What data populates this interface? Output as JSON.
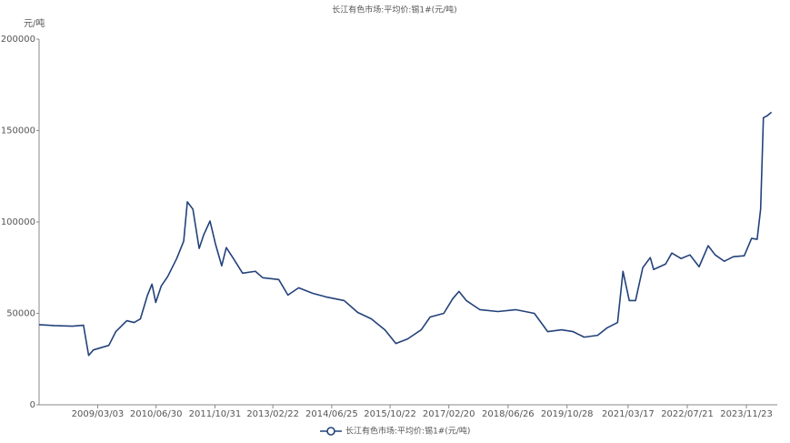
{
  "chart_data": {
    "type": "line",
    "title": "长江有色市场:平均价:锡1#(元/吨)",
    "y_label": "元/吨",
    "x": [
      "2007/11/03",
      "2008/03/10",
      "2008/08/05",
      "2008/11/05",
      "2008/11/27",
      "2008/12/18",
      "2009/01/26",
      "2009/03/18",
      "2009/06/03",
      "2009/07/31",
      "2009/09/22",
      "2009/10/30",
      "2009/12/30",
      "2010/02/20",
      "2010/04/20",
      "2010/05/27",
      "2010/06/27",
      "2010/08/12",
      "2010/10/03",
      "2010/12/18",
      "2011/02/14",
      "2011/03/16",
      "2011/05/01",
      "2011/06/22",
      "2011/07/30",
      "2011/09/20",
      "2011/11/04",
      "2011/12/26",
      "2012/02/02",
      "2012/04/01",
      "2012/06/16",
      "2012/09/30",
      "2012/11/30",
      "2013/04/12",
      "2013/06/27",
      "2013/09/24",
      "2014/01/17",
      "2014/05/09",
      "2014/10/06",
      "2015/01/27",
      "2015/05/19",
      "2015/09/09",
      "2015/12/09",
      "2016/03/15",
      "2016/07/06",
      "2016/09/18",
      "2017/01/09",
      "2017/03/24",
      "2017/05/15",
      "2017/07/15",
      "2017/11/05",
      "2018/04/03",
      "2018/08/31",
      "2019/01/30",
      "2019/05/21",
      "2019/09/12",
      "2019/12/18",
      "2020/03/18",
      "2020/07/08",
      "2020/09/22",
      "2020/12/20",
      "2021/02/03",
      "2021/03/27",
      "2021/05/18",
      "2021/07/17",
      "2021/09/17",
      "2021/10/15",
      "2022/01/22",
      "2022/03/15",
      "2022/05/30",
      "2022/08/12",
      "2022/10/27",
      "2023/01/10",
      "2023/03/09",
      "2023/05/24",
      "2023/08/07",
      "2023/11/05",
      "2024/01/05",
      "2024/02/20",
      "2024/03/20",
      "2024/04/12",
      "2024/05/12",
      "2024/06/18"
    ],
    "series": [
      {
        "name": "长江有色市场:平均价:锡1#(元/吨)",
        "color": "#23427a",
        "values": [
          43800,
          43300,
          43000,
          43500,
          35000,
          27000,
          30000,
          31000,
          32500,
          40000,
          43500,
          46000,
          45000,
          47000,
          60000,
          66000,
          56000,
          65000,
          70000,
          80000,
          89500,
          111000,
          107000,
          85500,
          93000,
          100500,
          88000,
          76000,
          86000,
          80000,
          72000,
          73000,
          69500,
          68500,
          60000,
          64000,
          61000,
          59000,
          57000,
          50500,
          47000,
          41000,
          33500,
          36000,
          41000,
          48000,
          50000,
          58000,
          62000,
          57000,
          52000,
          51000,
          52000,
          50000,
          40000,
          41000,
          40000,
          37000,
          38000,
          42000,
          45000,
          73000,
          57000,
          57000,
          75000,
          80500,
          74000,
          77000,
          83000,
          80000,
          82000,
          75500,
          87000,
          82000,
          78500,
          81000,
          81500,
          91000,
          90500,
          107000,
          157000,
          158000,
          160000
        ]
      }
    ],
    "xlim": [
      "2007/11/03",
      "2024/08/05"
    ],
    "xticks": [
      "2009/03/03",
      "2010/06/30",
      "2011/10/31",
      "2013/02/22",
      "2014/06/25",
      "2015/10/22",
      "2017/02/20",
      "2018/06/26",
      "2019/10/28",
      "2021/03/17",
      "2022/07/21",
      "2023/11/23"
    ],
    "ylim": [
      0,
      200000
    ],
    "yticks": [
      0,
      50000,
      100000,
      150000,
      200000
    ],
    "grid": false
  }
}
